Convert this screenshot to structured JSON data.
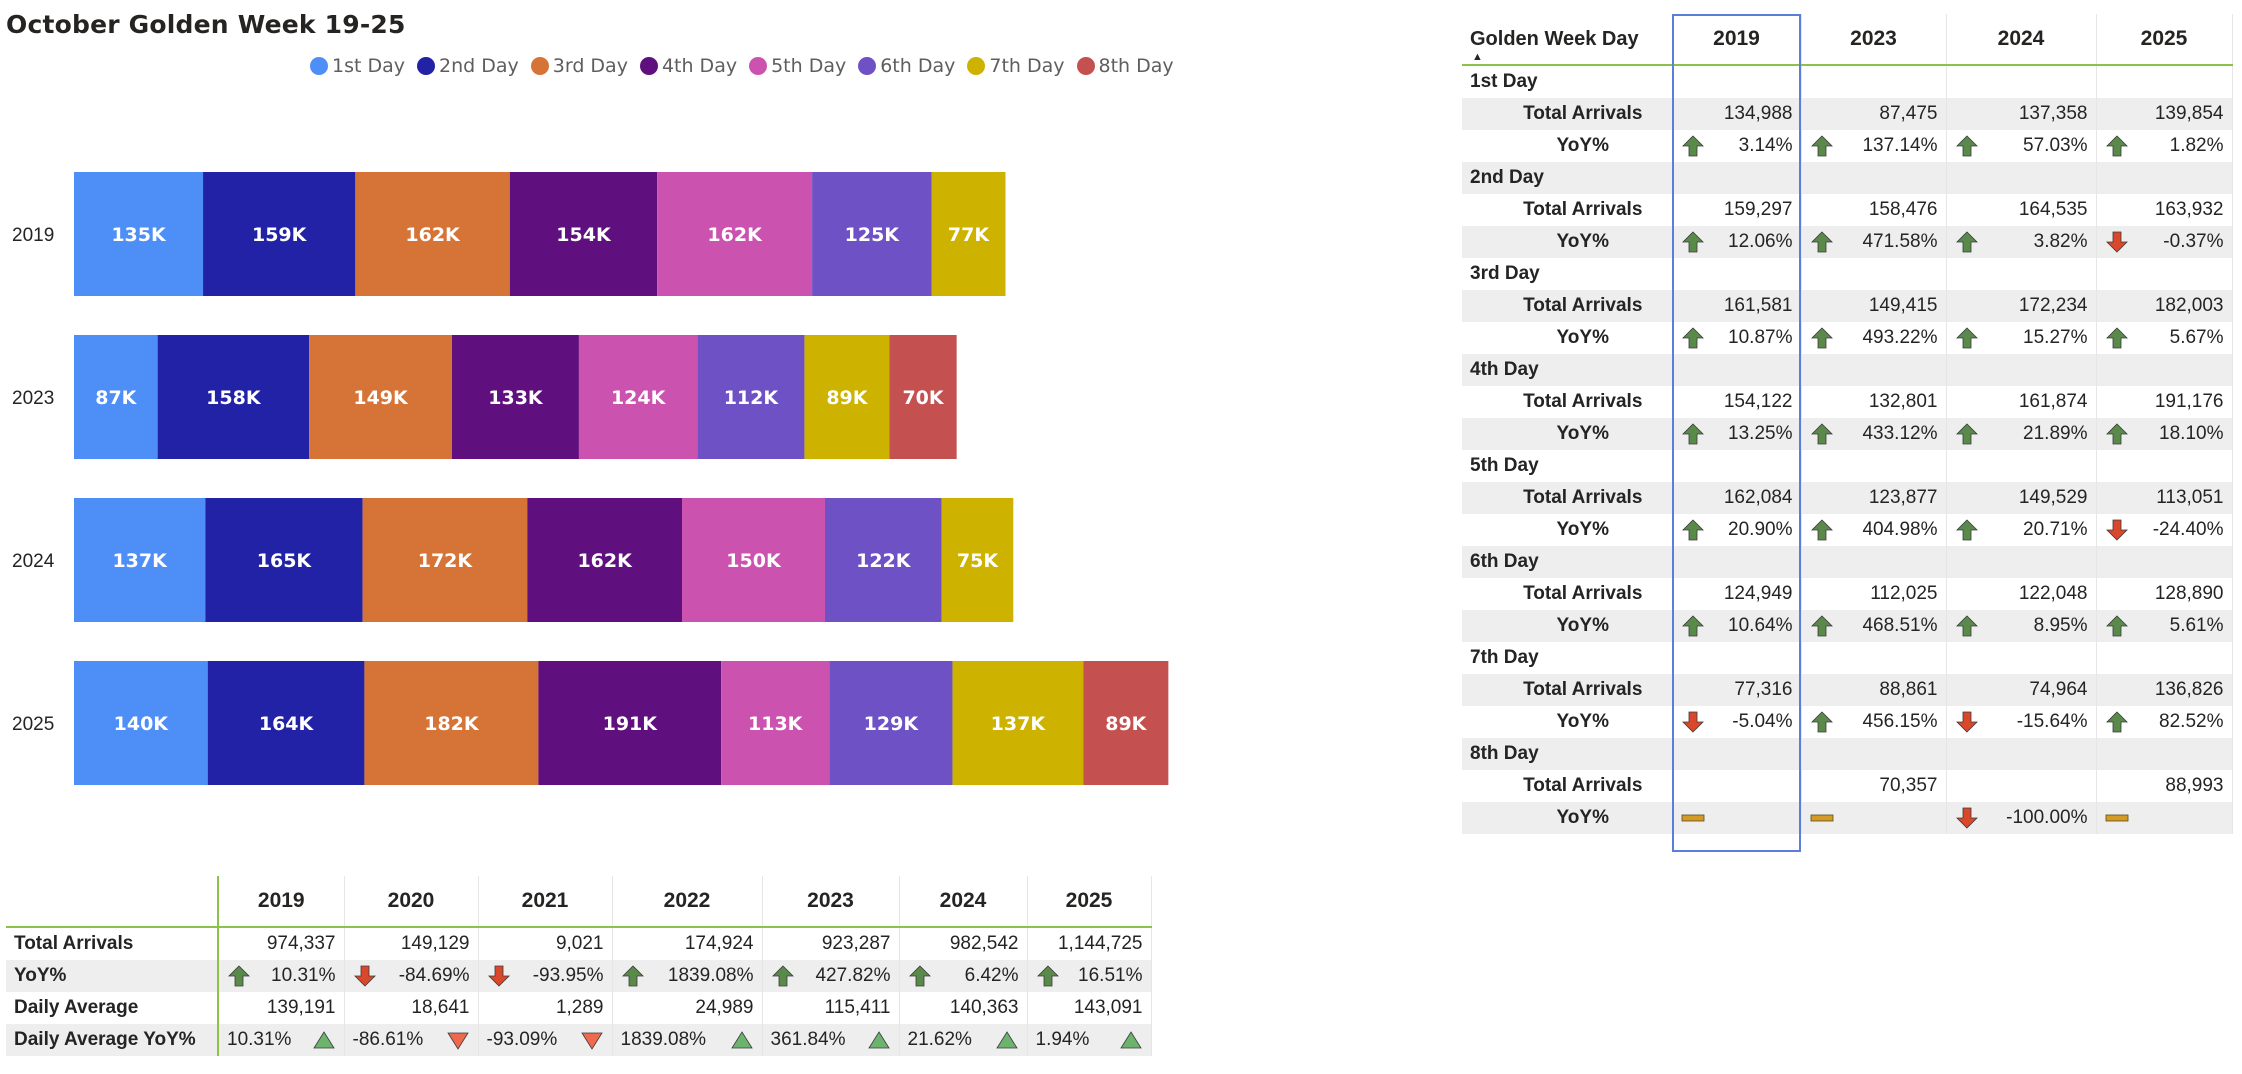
{
  "chart_data": {
    "type": "bar",
    "orientation": "horizontal",
    "stacked": true,
    "title": "October Golden Week 19-25",
    "legend_position": "top-center",
    "categories": [
      "2019",
      "2023",
      "2024",
      "2025"
    ],
    "series": [
      {
        "name": "1st Day",
        "color": "#4e8ef7",
        "values": [
          134988,
          87475,
          137358,
          139854
        ],
        "labels": [
          "135K",
          "87K",
          "137K",
          "140K"
        ]
      },
      {
        "name": "2nd Day",
        "color": "#2222a6",
        "values": [
          159297,
          158476,
          164535,
          163932
        ],
        "labels": [
          "159K",
          "158K",
          "165K",
          "164K"
        ]
      },
      {
        "name": "3rd Day",
        "color": "#d67336",
        "values": [
          161581,
          149415,
          172234,
          182003
        ],
        "labels": [
          "162K",
          "149K",
          "172K",
          "182K"
        ]
      },
      {
        "name": "4th Day",
        "color": "#5f107e",
        "values": [
          154122,
          132801,
          161874,
          191176
        ],
        "labels": [
          "154K",
          "133K",
          "162K",
          "191K"
        ]
      },
      {
        "name": "5th Day",
        "color": "#cc52b0",
        "values": [
          162084,
          123877,
          149529,
          113051
        ],
        "labels": [
          "162K",
          "124K",
          "150K",
          "113K"
        ]
      },
      {
        "name": "6th Day",
        "color": "#6f51c6",
        "values": [
          124949,
          112025,
          122048,
          128890
        ],
        "labels": [
          "125K",
          "112K",
          "122K",
          "129K"
        ]
      },
      {
        "name": "7th Day",
        "color": "#cdb300",
        "values": [
          77316,
          88861,
          74964,
          136826
        ],
        "labels": [
          "77K",
          "89K",
          "75K",
          "137K"
        ]
      },
      {
        "name": "8th Day",
        "color": "#c4514f",
        "values": [
          0,
          70357,
          0,
          88993
        ],
        "labels": [
          "",
          "70K",
          "",
          "89K"
        ]
      }
    ]
  },
  "icon_colors": {
    "up": "#5a8a4a",
    "down": "#d9482b",
    "neutral": "#d49a26",
    "tri_up": "#6cb36e",
    "tri_down": "#ee6a4f"
  },
  "day_table": {
    "label_header": "Golden Week Day",
    "years": [
      "2019",
      "2023",
      "2024",
      "2025"
    ],
    "metric_labels": {
      "arrivals": "Total Arrivals",
      "yoy": "YoY%"
    },
    "days": [
      {
        "name": "1st Day",
        "arrivals": [
          "134,988",
          "87,475",
          "137,358",
          "139,854"
        ],
        "yoy": [
          "3.14%",
          "137.14%",
          "57.03%",
          "1.82%"
        ],
        "yoy_icons": [
          "up-arrow-icon",
          "up-arrow-icon",
          "up-arrow-icon",
          "up-arrow-icon"
        ]
      },
      {
        "name": "2nd Day",
        "arrivals": [
          "159,297",
          "158,476",
          "164,535",
          "163,932"
        ],
        "yoy": [
          "12.06%",
          "471.58%",
          "3.82%",
          "-0.37%"
        ],
        "yoy_icons": [
          "up-arrow-icon",
          "up-arrow-icon",
          "up-arrow-icon",
          "down-arrow-icon"
        ]
      },
      {
        "name": "3rd Day",
        "arrivals": [
          "161,581",
          "149,415",
          "172,234",
          "182,003"
        ],
        "yoy": [
          "10.87%",
          "493.22%",
          "15.27%",
          "5.67%"
        ],
        "yoy_icons": [
          "up-arrow-icon",
          "up-arrow-icon",
          "up-arrow-icon",
          "up-arrow-icon"
        ]
      },
      {
        "name": "4th Day",
        "arrivals": [
          "154,122",
          "132,801",
          "161,874",
          "191,176"
        ],
        "yoy": [
          "13.25%",
          "433.12%",
          "21.89%",
          "18.10%"
        ],
        "yoy_icons": [
          "up-arrow-icon",
          "up-arrow-icon",
          "up-arrow-icon",
          "up-arrow-icon"
        ]
      },
      {
        "name": "5th Day",
        "arrivals": [
          "162,084",
          "123,877",
          "149,529",
          "113,051"
        ],
        "yoy": [
          "20.90%",
          "404.98%",
          "20.71%",
          "-24.40%"
        ],
        "yoy_icons": [
          "up-arrow-icon",
          "up-arrow-icon",
          "up-arrow-icon",
          "down-arrow-icon"
        ]
      },
      {
        "name": "6th Day",
        "arrivals": [
          "124,949",
          "112,025",
          "122,048",
          "128,890"
        ],
        "yoy": [
          "10.64%",
          "468.51%",
          "8.95%",
          "5.61%"
        ],
        "yoy_icons": [
          "up-arrow-icon",
          "up-arrow-icon",
          "up-arrow-icon",
          "up-arrow-icon"
        ]
      },
      {
        "name": "7th Day",
        "arrivals": [
          "77,316",
          "88,861",
          "74,964",
          "136,826"
        ],
        "yoy": [
          "-5.04%",
          "456.15%",
          "-15.64%",
          "82.52%"
        ],
        "yoy_icons": [
          "down-arrow-icon",
          "up-arrow-icon",
          "down-arrow-icon",
          "up-arrow-icon"
        ]
      },
      {
        "name": "8th Day",
        "arrivals": [
          "",
          "70,357",
          "",
          "88,993"
        ],
        "yoy": [
          "",
          "",
          "-100.00%",
          ""
        ],
        "yoy_icons": [
          "neutral-dash-icon",
          "neutral-dash-icon",
          "down-arrow-icon",
          "neutral-dash-icon"
        ]
      }
    ]
  },
  "year_table": {
    "years": [
      "2019",
      "2020",
      "2021",
      "2022",
      "2023",
      "2024",
      "2025"
    ],
    "rows": [
      {
        "label": "Total Arrivals",
        "values": [
          "974,337",
          "149,129",
          "9,021",
          "174,924",
          "923,287",
          "982,542",
          "1,144,725"
        ],
        "icons": []
      },
      {
        "label": "YoY%",
        "values": [
          "10.31%",
          "-84.69%",
          "-93.95%",
          "1839.08%",
          "427.82%",
          "6.42%",
          "16.51%"
        ],
        "icons": [
          "up-arrow-icon",
          "down-arrow-icon",
          "down-arrow-icon",
          "up-arrow-icon",
          "up-arrow-icon",
          "up-arrow-icon",
          "up-arrow-icon"
        ]
      },
      {
        "label": "Daily Average",
        "values": [
          "139,191",
          "18,641",
          "1,289",
          "24,989",
          "115,411",
          "140,363",
          "143,091"
        ],
        "icons": []
      },
      {
        "label": "Daily Average YoY%",
        "values": [
          "10.31%",
          "-86.61%",
          "-93.09%",
          "1839.08%",
          "361.84%",
          "21.62%",
          "1.94%"
        ],
        "icons": [
          "triangle-up-icon",
          "triangle-down-icon",
          "triangle-down-icon",
          "triangle-up-icon",
          "triangle-up-icon",
          "triangle-up-icon",
          "triangle-up-icon"
        ]
      }
    ]
  }
}
